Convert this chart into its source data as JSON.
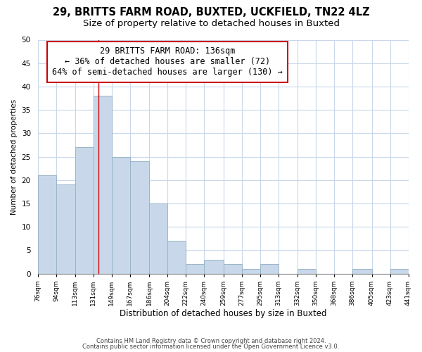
{
  "title1": "29, BRITTS FARM ROAD, BUXTED, UCKFIELD, TN22 4LZ",
  "title2": "Size of property relative to detached houses in Buxted",
  "xlabel": "Distribution of detached houses by size in Buxted",
  "ylabel": "Number of detached properties",
  "bar_color": "#c8d8ea",
  "bar_edge_color": "#9ab4c8",
  "marker_line_color": "#cc0000",
  "marker_value": 136,
  "bin_edges": [
    76,
    94,
    113,
    131,
    149,
    167,
    186,
    204,
    222,
    240,
    259,
    277,
    295,
    313,
    332,
    350,
    368,
    386,
    405,
    423,
    441
  ],
  "bin_labels": [
    "76sqm",
    "94sqm",
    "113sqm",
    "131sqm",
    "149sqm",
    "167sqm",
    "186sqm",
    "204sqm",
    "222sqm",
    "240sqm",
    "259sqm",
    "277sqm",
    "295sqm",
    "313sqm",
    "332sqm",
    "350sqm",
    "368sqm",
    "386sqm",
    "405sqm",
    "423sqm",
    "441sqm"
  ],
  "bar_heights": [
    21,
    19,
    27,
    38,
    25,
    24,
    15,
    7,
    2,
    3,
    2,
    1,
    2,
    0,
    1,
    0,
    0,
    1,
    0,
    1
  ],
  "ylim": [
    0,
    50
  ],
  "yticks": [
    0,
    5,
    10,
    15,
    20,
    25,
    30,
    35,
    40,
    45,
    50
  ],
  "annotation_title": "29 BRITTS FARM ROAD: 136sqm",
  "annotation_line1": "← 36% of detached houses are smaller (72)",
  "annotation_line2": "64% of semi-detached houses are larger (130) →",
  "annotation_box_color": "#ffffff",
  "annotation_box_edge": "#cc0000",
  "footer1": "Contains HM Land Registry data © Crown copyright and database right 2024.",
  "footer2": "Contains public sector information licensed under the Open Government Licence v3.0.",
  "bg_color": "#ffffff",
  "grid_color": "#c8d8ea",
  "title1_fontsize": 10.5,
  "title2_fontsize": 9.5
}
